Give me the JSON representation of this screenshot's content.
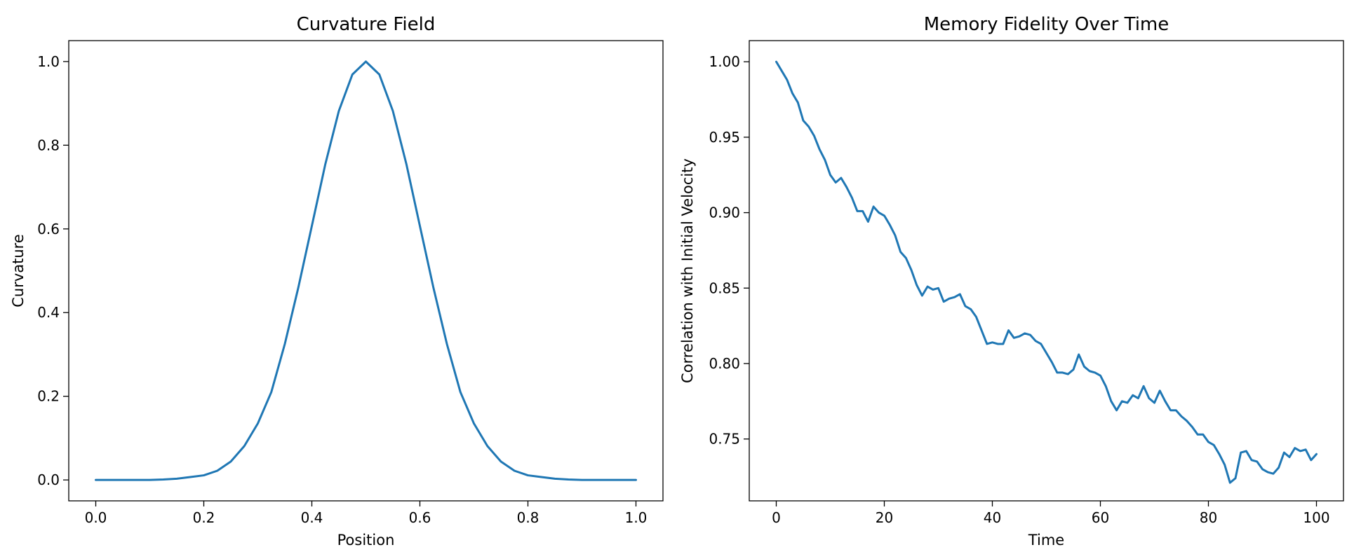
{
  "chart_data": [
    {
      "type": "line",
      "title": "Curvature Field",
      "xlabel": "Position",
      "ylabel": "Curvature",
      "xlim": [
        -0.05,
        1.05
      ],
      "ylim": [
        -0.05,
        1.05
      ],
      "xticks": [
        0.0,
        0.2,
        0.4,
        0.6,
        0.8,
        1.0
      ],
      "xtick_labels": [
        "0.0",
        "0.2",
        "0.4",
        "0.6",
        "0.8",
        "1.0"
      ],
      "yticks": [
        0.0,
        0.2,
        0.4,
        0.6,
        0.8,
        1.0
      ],
      "ytick_labels": [
        "0.0",
        "0.2",
        "0.4",
        "0.6",
        "0.8",
        "1.0"
      ],
      "grid": false,
      "series": [
        {
          "name": "curvature",
          "color": "#1f77b4",
          "x": [
            0.0,
            0.025,
            0.05,
            0.075,
            0.1,
            0.125,
            0.15,
            0.175,
            0.2,
            0.225,
            0.25,
            0.275,
            0.3,
            0.325,
            0.35,
            0.375,
            0.4,
            0.425,
            0.45,
            0.475,
            0.5,
            0.525,
            0.55,
            0.575,
            0.6,
            0.625,
            0.65,
            0.675,
            0.7,
            0.725,
            0.75,
            0.775,
            0.8,
            0.825,
            0.85,
            0.875,
            0.9,
            0.925,
            0.95,
            0.975,
            1.0
          ],
          "y": [
            0.0,
            0.0,
            0.0,
            0.0,
            0.0,
            0.001,
            0.003,
            0.007,
            0.011,
            0.022,
            0.044,
            0.081,
            0.135,
            0.21,
            0.325,
            0.46,
            0.607,
            0.755,
            0.882,
            0.969,
            1.0,
            0.969,
            0.882,
            0.755,
            0.607,
            0.46,
            0.325,
            0.21,
            0.135,
            0.081,
            0.044,
            0.022,
            0.011,
            0.007,
            0.003,
            0.001,
            0.0,
            0.0,
            0.0,
            0.0,
            0.0
          ]
        }
      ]
    },
    {
      "type": "line",
      "title": "Memory Fidelity Over Time",
      "xlabel": "Time",
      "ylabel": "Correlation with Initial Velocity",
      "xlim": [
        -5,
        105
      ],
      "ylim": [
        0.709,
        1.014
      ],
      "xticks": [
        0,
        20,
        40,
        60,
        80,
        100
      ],
      "xtick_labels": [
        "0",
        "20",
        "40",
        "60",
        "80",
        "100"
      ],
      "yticks": [
        0.75,
        0.8,
        0.85,
        0.9,
        0.95,
        1.0
      ],
      "ytick_labels": [
        "0.75",
        "0.80",
        "0.85",
        "0.90",
        "0.95",
        "1.00"
      ],
      "grid": false,
      "series": [
        {
          "name": "correlation",
          "color": "#1f77b4",
          "x": [
            0,
            1,
            2,
            3,
            4,
            5,
            6,
            7,
            8,
            9,
            10,
            11,
            12,
            13,
            14,
            15,
            16,
            17,
            18,
            19,
            20,
            21,
            22,
            23,
            24,
            25,
            26,
            27,
            28,
            29,
            30,
            31,
            32,
            33,
            34,
            35,
            36,
            37,
            38,
            39,
            40,
            41,
            42,
            43,
            44,
            45,
            46,
            47,
            48,
            49,
            50,
            51,
            52,
            53,
            54,
            55,
            56,
            57,
            58,
            59,
            60,
            61,
            62,
            63,
            64,
            65,
            66,
            67,
            68,
            69,
            70,
            71,
            72,
            73,
            74,
            75,
            76,
            77,
            78,
            79,
            80,
            81,
            82,
            83,
            84,
            85,
            86,
            87,
            88,
            89,
            90,
            91,
            92,
            93,
            94,
            95,
            96,
            97,
            98,
            99,
            100
          ],
          "y": [
            1.0,
            0.994,
            0.988,
            0.979,
            0.973,
            0.961,
            0.957,
            0.951,
            0.942,
            0.935,
            0.925,
            0.92,
            0.923,
            0.917,
            0.91,
            0.901,
            0.901,
            0.894,
            0.904,
            0.9,
            0.898,
            0.892,
            0.885,
            0.874,
            0.87,
            0.862,
            0.852,
            0.845,
            0.851,
            0.849,
            0.85,
            0.841,
            0.843,
            0.844,
            0.846,
            0.838,
            0.836,
            0.831,
            0.822,
            0.813,
            0.814,
            0.813,
            0.813,
            0.822,
            0.817,
            0.818,
            0.82,
            0.819,
            0.815,
            0.813,
            0.807,
            0.801,
            0.794,
            0.794,
            0.793,
            0.796,
            0.806,
            0.798,
            0.795,
            0.794,
            0.792,
            0.785,
            0.775,
            0.769,
            0.775,
            0.774,
            0.779,
            0.777,
            0.785,
            0.777,
            0.774,
            0.782,
            0.775,
            0.769,
            0.769,
            0.765,
            0.762,
            0.758,
            0.753,
            0.753,
            0.748,
            0.746,
            0.74,
            0.733,
            0.721,
            0.724,
            0.741,
            0.742,
            0.736,
            0.735,
            0.73,
            0.728,
            0.727,
            0.731,
            0.741,
            0.738,
            0.744,
            0.742,
            0.743,
            0.736,
            0.74
          ]
        }
      ]
    }
  ]
}
